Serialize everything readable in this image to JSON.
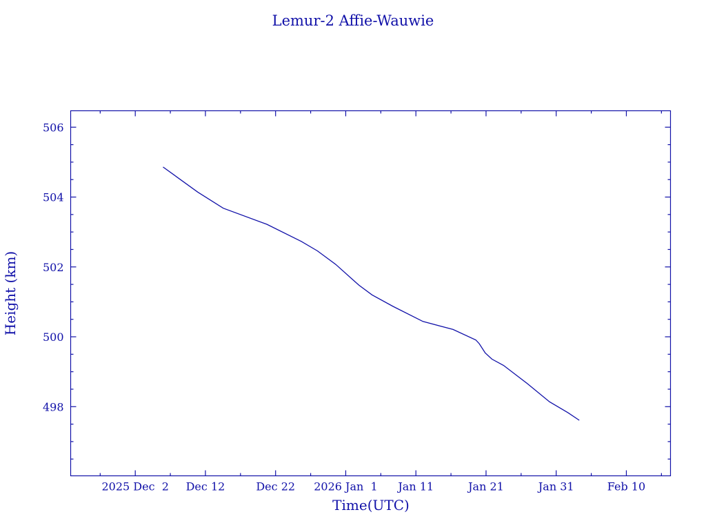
{
  "chart_data": {
    "type": "line",
    "title": "Lemur-2 Affie-Wauwie",
    "xlabel": "Time(UTC)",
    "ylabel": "Height (km)",
    "xlim": [
      "2025-11-22T19:00:00Z",
      "2026-02-16T07:00:00Z"
    ],
    "ylim": [
      496.02,
      506.47
    ],
    "x_ticks": [
      {
        "date": "2025-12-02T00:00:00Z",
        "label": "2025 Dec  2"
      },
      {
        "date": "2025-12-12T00:00:00Z",
        "label": "Dec 12"
      },
      {
        "date": "2025-12-22T00:00:00Z",
        "label": "Dec 22"
      },
      {
        "date": "2026-01-01T00:00:00Z",
        "label": "2026 Jan  1"
      },
      {
        "date": "2026-01-11T00:00:00Z",
        "label": "Jan 11"
      },
      {
        "date": "2026-01-21T00:00:00Z",
        "label": "Jan 21"
      },
      {
        "date": "2026-01-31T00:00:00Z",
        "label": "Jan 31"
      },
      {
        "date": "2026-02-10T00:00:00Z",
        "label": "Feb 10"
      }
    ],
    "y_ticks": [
      498,
      500,
      502,
      504,
      506
    ],
    "grid": false,
    "color": "#1010a8",
    "series": [
      {
        "x": [
          "2025-12-05T23:00:00Z",
          "2025-12-10T22:00:00Z",
          "2025-12-14T13:00:00Z",
          "2025-12-20T18:00:00Z",
          "2025-12-25T16:00:00Z",
          "2025-12-27T23:00:00Z",
          "2025-12-30T14:00:00Z",
          "2026-01-02T21:00:00Z",
          "2026-01-04T18:00:00Z",
          "2026-01-07T18:00:00Z",
          "2026-01-12T00:00:00Z",
          "2026-01-16T07:00:00Z",
          "2026-01-19T13:00:00Z",
          "2026-01-20T01:00:00Z",
          "2026-01-20T21:00:00Z",
          "2026-01-21T20:00:00Z",
          "2026-01-23T12:00:00Z",
          "2026-01-26T18:00:00Z",
          "2026-01-30T01:00:00Z",
          "2026-02-01T16:00:00Z",
          "2026-02-03T07:00:00Z"
        ],
        "y": [
          504.86,
          504.14,
          503.68,
          503.22,
          502.73,
          502.46,
          502.07,
          501.48,
          501.2,
          500.87,
          500.44,
          500.21,
          499.91,
          499.8,
          499.54,
          499.36,
          499.18,
          498.68,
          498.14,
          497.83,
          497.61
        ]
      }
    ]
  }
}
